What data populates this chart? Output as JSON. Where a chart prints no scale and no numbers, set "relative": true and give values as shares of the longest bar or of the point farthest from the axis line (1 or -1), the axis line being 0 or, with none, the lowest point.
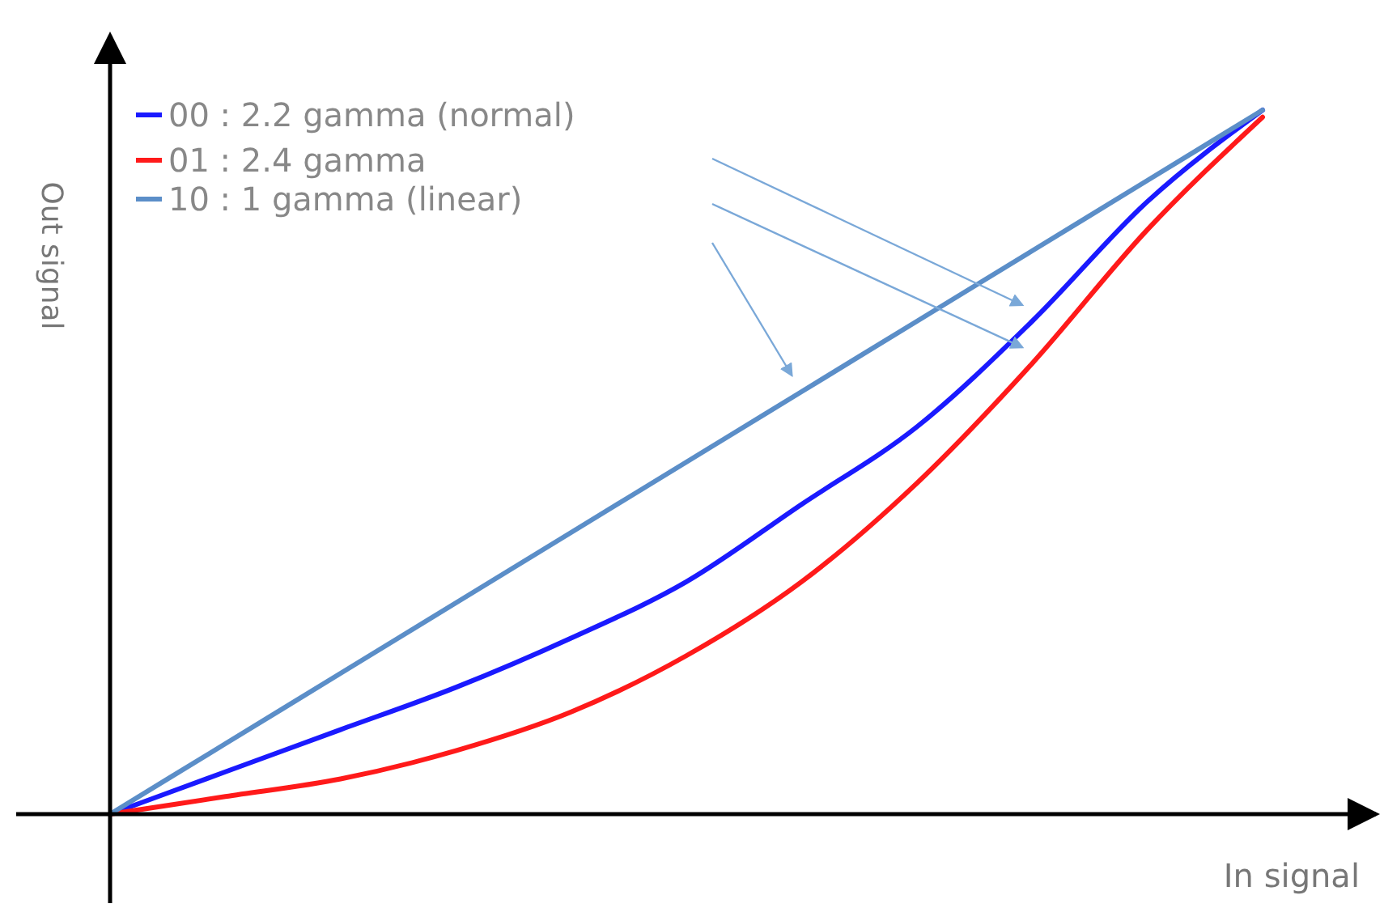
{
  "chart_data": {
    "type": "line",
    "relative": true,
    "xlabel": "In signal",
    "ylabel": "Out signal",
    "categories": [
      null,
      null,
      null,
      null,
      null,
      null,
      null,
      null,
      null,
      null,
      null
    ],
    "series": [
      {
        "name": "00 : 2.2 gamma (normal)",
        "color": "#1a1aff",
        "values": [
          0,
          0.06,
          0.12,
          0.18,
          0.25,
          0.33,
          0.44,
          0.55,
          0.7,
          0.87,
          1
        ]
      },
      {
        "name": "01 : 2.4 gamma",
        "color": "#ff1a1a",
        "values": [
          0,
          0.025,
          0.05,
          0.09,
          0.145,
          0.225,
          0.33,
          0.47,
          0.64,
          0.83,
          0.99
        ]
      },
      {
        "name": "10 : 1 gamma (linear)",
        "color": "#5b8ec8",
        "values": [
          0,
          0.1,
          0.2,
          0.3,
          0.4,
          0.5,
          0.6,
          0.7,
          0.8,
          0.9,
          1
        ]
      }
    ],
    "grid": false,
    "legend": "top left",
    "marker": "none",
    "line_style": "solid"
  }
}
